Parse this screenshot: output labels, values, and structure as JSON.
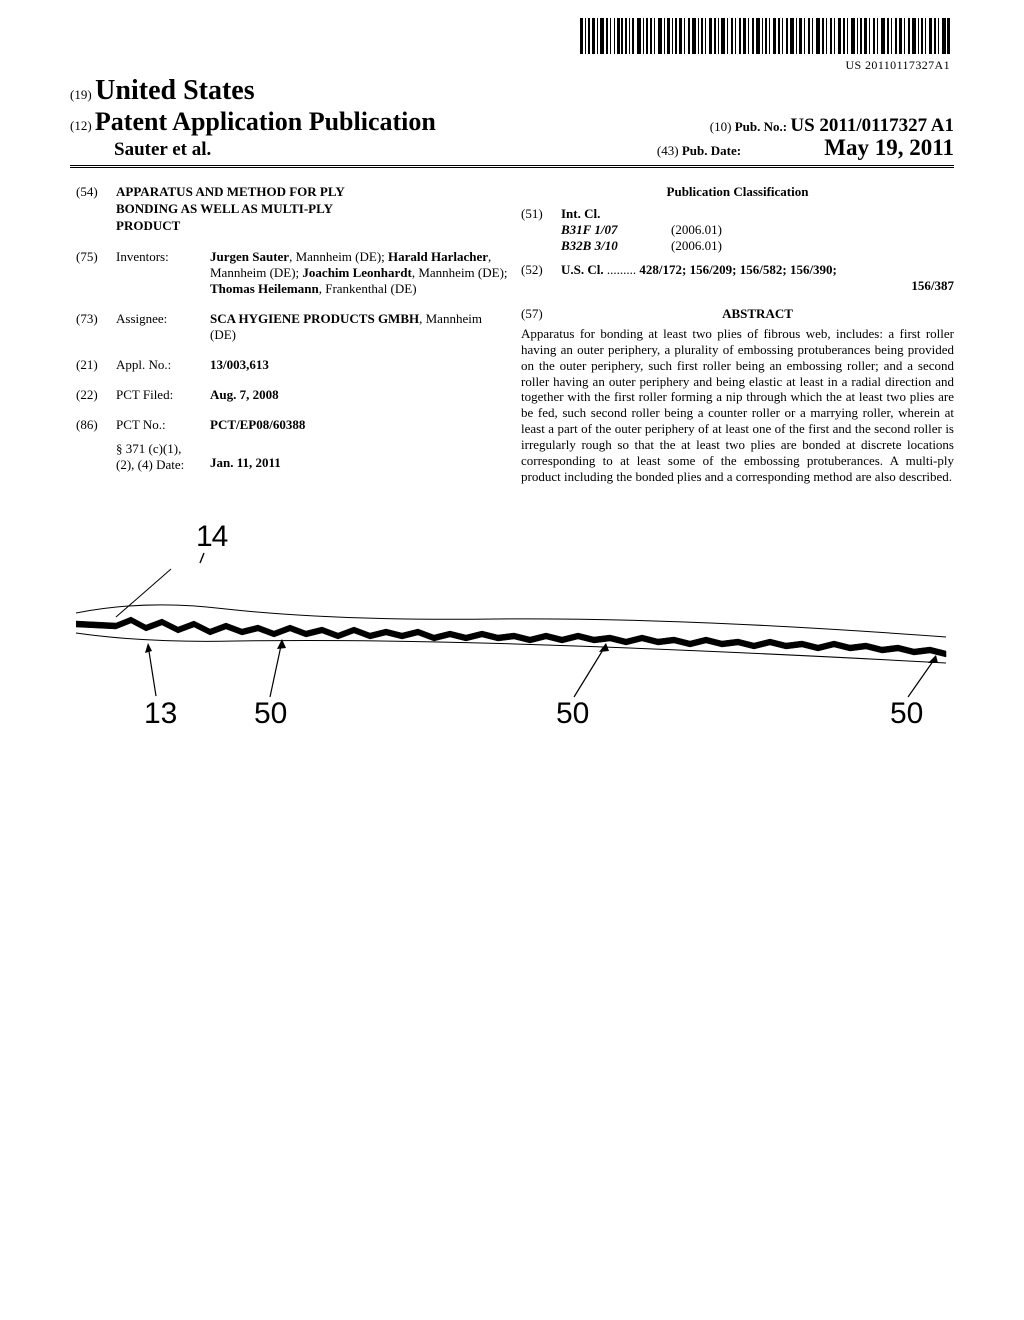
{
  "barcode_number": "US 20110117327A1",
  "country_code": "(19)",
  "country": "United States",
  "pub_code": "(12)",
  "pub_title": "Patent Application Publication",
  "pubno_code": "(10)",
  "pubno_label": "Pub. No.:",
  "pubno_value": "US 2011/0117327 A1",
  "authors": "Sauter et al.",
  "pubdate_code": "(43)",
  "pubdate_label": "Pub. Date:",
  "pubdate_value": "May 19, 2011",
  "fields": {
    "code54": "(54)",
    "title54": "APPARATUS AND METHOD FOR PLY BONDING AS WELL AS MULTI-PLY PRODUCT",
    "code75": "(75)",
    "lab75": "Inventors:",
    "val75_parts": [
      {
        "b": "Jurgen Sauter",
        "r": ", Mannheim (DE); "
      },
      {
        "b": "Harald Harlacher",
        "r": ", Mannheim (DE); "
      },
      {
        "b": "Joachim Leonhardt",
        "r": ", Mannheim (DE); "
      },
      {
        "b": "Thomas Heilemann",
        "r": ", Frankenthal (DE)"
      }
    ],
    "code73": "(73)",
    "lab73": "Assignee:",
    "val73_b": "SCA HYGIENE PRODUCTS GMBH",
    "val73_r": ", Mannheim (DE)",
    "code21": "(21)",
    "lab21": "Appl. No.:",
    "val21": "13/003,613",
    "code22": "(22)",
    "lab22": "PCT Filed:",
    "val22": "Aug. 7, 2008",
    "code86": "(86)",
    "lab86": "PCT No.:",
    "val86": "PCT/EP08/60388",
    "s371a": "§ 371 (c)(1),",
    "s371b": "(2), (4) Date:",
    "s371v": "Jan. 11, 2011"
  },
  "classification": {
    "header": "Publication Classification",
    "code51": "(51)",
    "lab51": "Int. Cl.",
    "intcls": [
      {
        "cls": "B31F 1/07",
        "yr": "(2006.01)"
      },
      {
        "cls": "B32B 3/10",
        "yr": "(2006.01)"
      }
    ],
    "code52": "(52)",
    "lab52": "U.S. Cl.",
    "dots": " .........",
    "val52a": " 428/172; 156/209; 156/582; 156/390;",
    "val52b": "156/387"
  },
  "abstract": {
    "code": "(57)",
    "head": "ABSTRACT",
    "text": "Apparatus for bonding at least two plies of fibrous web, includes: a first roller having an outer periphery, a plurality of embossing protuberances being provided on the outer periphery, such first roller being an embossing roller; and a second roller having an outer periphery and being elastic at least in a radial direction and together with the first roller forming a nip through which the at least two plies are be fed, such second roller being a counter roller or a marrying roller, wherein at least a part of the outer periphery of at least one of the first and the second roller is irregularly rough so that the at least two plies are bonded at discrete locations corresponding to at least some of the embossing protuberances. A multi-ply product including the bonded plies and a corresponding method are also described."
  },
  "figure": {
    "labels": {
      "n14": "14",
      "n13": "13",
      "n50": "50"
    },
    "style": {
      "stroke": "#000000",
      "thin": 1,
      "section_stroke": 2.2,
      "font": "Arial"
    }
  }
}
